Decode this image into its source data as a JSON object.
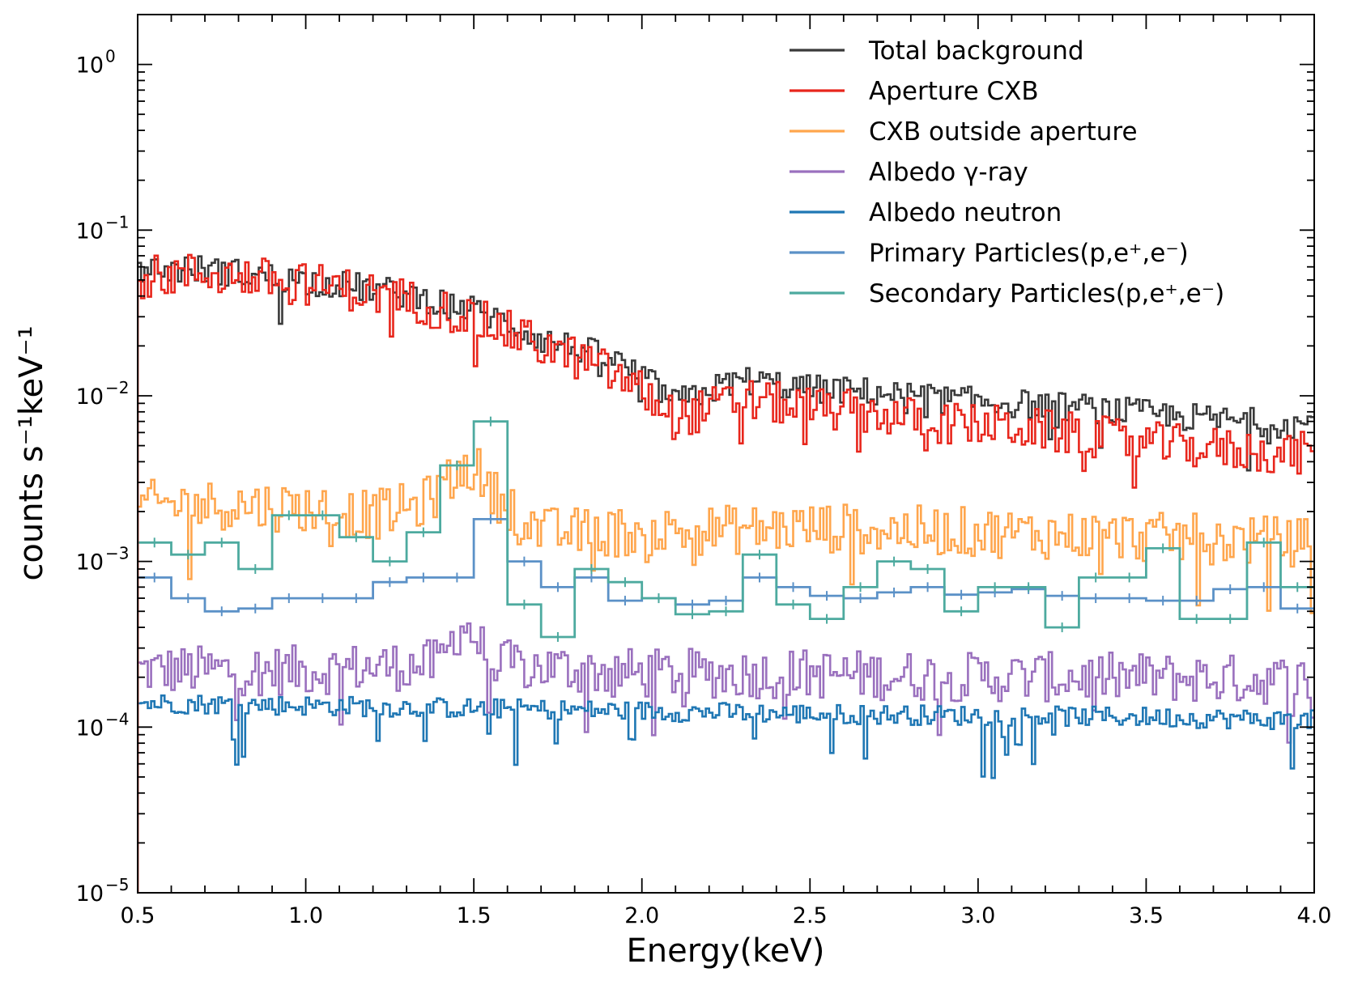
{
  "chart_data": {
    "type": "line",
    "style": "step",
    "xlabel": "Energy(keV)",
    "ylabel": "counts s⁻¹keV⁻¹",
    "xscale": "linear",
    "yscale": "log",
    "xlim": [
      0.5,
      4.0
    ],
    "ylim": [
      1e-05,
      2
    ],
    "xticks": [
      {
        "value": 0.5,
        "label": "0.5"
      },
      {
        "value": 1.0,
        "label": "1.0"
      },
      {
        "value": 1.5,
        "label": "1.5"
      },
      {
        "value": 2.0,
        "label": "2.0"
      },
      {
        "value": 2.5,
        "label": "2.5"
      },
      {
        "value": 3.0,
        "label": "3.0"
      },
      {
        "value": 3.5,
        "label": "3.5"
      },
      {
        "value": 4.0,
        "label": "4.0"
      }
    ],
    "yticks": [
      {
        "value": 1,
        "base": "10",
        "exp": "0"
      },
      {
        "value": 0.1,
        "base": "10",
        "exp": "−1"
      },
      {
        "value": 0.01,
        "base": "10",
        "exp": "−2"
      },
      {
        "value": 0.001,
        "base": "10",
        "exp": "−3"
      },
      {
        "value": 0.0001,
        "base": "10",
        "exp": "−4"
      },
      {
        "value": 1e-05,
        "base": "10",
        "exp": "−5"
      }
    ],
    "legend_position": "top-right",
    "series": [
      {
        "name": "Total background",
        "color": "#3a3a3a",
        "noise": 0.2,
        "binwidth": 0.01,
        "x": [
          0.5,
          0.7,
          0.9,
          1.1,
          1.3,
          1.5,
          1.7,
          1.9,
          2.1,
          2.3,
          2.5,
          2.7,
          2.9,
          3.1,
          3.3,
          3.5,
          3.7,
          3.9,
          4.0
        ],
        "y": [
          0.058,
          0.058,
          0.052,
          0.047,
          0.041,
          0.033,
          0.022,
          0.017,
          0.009,
          0.0125,
          0.011,
          0.0105,
          0.0095,
          0.009,
          0.0085,
          0.0078,
          0.0072,
          0.0068,
          0.0068
        ]
      },
      {
        "name": "Aperture CXB",
        "color": "#e8261c",
        "noise": 0.3,
        "binwidth": 0.01,
        "x": [
          0.5,
          0.7,
          0.9,
          1.1,
          1.3,
          1.5,
          1.7,
          1.9,
          2.1,
          2.3,
          2.5,
          2.7,
          2.9,
          3.1,
          3.3,
          3.5,
          3.7,
          3.9,
          4.0
        ],
        "y": [
          0.052,
          0.055,
          0.05,
          0.045,
          0.038,
          0.029,
          0.02,
          0.014,
          0.0072,
          0.0095,
          0.0085,
          0.0078,
          0.0068,
          0.0065,
          0.0058,
          0.0052,
          0.0048,
          0.0045,
          0.0045
        ]
      },
      {
        "name": "CXB outside aperture",
        "color": "#ffa64d",
        "noise": 0.35,
        "binwidth": 0.01,
        "x": [
          0.5,
          0.8,
          1.0,
          1.2,
          1.35,
          1.45,
          1.5,
          1.55,
          1.7,
          2.0,
          2.5,
          3.0,
          3.5,
          4.0
        ],
        "y": [
          0.0022,
          0.0022,
          0.0021,
          0.0019,
          0.0022,
          0.0033,
          0.0038,
          0.0026,
          0.0015,
          0.0015,
          0.0016,
          0.0015,
          0.0014,
          0.0013
        ]
      },
      {
        "name": "Albedo γ-ray",
        "color": "#9a70be",
        "noise": 0.35,
        "binwidth": 0.01,
        "x": [
          0.5,
          1.0,
          1.4,
          1.47,
          1.55,
          2.0,
          2.5,
          3.0,
          3.5,
          4.0
        ],
        "y": [
          0.00022,
          0.00022,
          0.00024,
          0.00042,
          0.00024,
          0.00021,
          0.00021,
          0.0002,
          0.0002,
          0.00019
        ]
      },
      {
        "name": "Albedo neutron",
        "color": "#1f77b4",
        "noise": 0.14,
        "binwidth": 0.01,
        "x": [
          0.5,
          1.5,
          2.5,
          3.5,
          4.0
        ],
        "y": [
          0.00014,
          0.00013,
          0.00012,
          0.000115,
          0.00011
        ]
      },
      {
        "name": "Primary Particles(p,e⁺,e⁻)",
        "color": "#5b91c7",
        "noise": 0,
        "binwidth": 0.1,
        "x": [
          0.5,
          0.6,
          0.7,
          0.8,
          0.9,
          1.0,
          1.1,
          1.2,
          1.3,
          1.4,
          1.5,
          1.6,
          1.7,
          1.8,
          1.9,
          2.0,
          2.1,
          2.2,
          2.3,
          2.4,
          2.5,
          2.6,
          2.7,
          2.8,
          2.9,
          3.0,
          3.1,
          3.2,
          3.3,
          3.4,
          3.5,
          3.6,
          3.7,
          3.8,
          3.9
        ],
        "y": [
          0.0008,
          0.0006,
          0.0005,
          0.00052,
          0.0006,
          0.0006,
          0.0006,
          0.00075,
          0.0008,
          0.0008,
          0.0018,
          0.001,
          0.0007,
          0.0008,
          0.00058,
          0.0006,
          0.00055,
          0.00058,
          0.0008,
          0.0007,
          0.00062,
          0.0006,
          0.00065,
          0.0007,
          0.00063,
          0.00065,
          0.00068,
          0.00062,
          0.0006,
          0.0006,
          0.00058,
          0.00058,
          0.00068,
          0.0007,
          0.00052
        ]
      },
      {
        "name": "Secondary Particles(p,e⁺,e⁻)",
        "color": "#4daa9f",
        "noise": 0,
        "binwidth": 0.1,
        "x": [
          0.5,
          0.6,
          0.7,
          0.8,
          0.9,
          1.0,
          1.1,
          1.2,
          1.3,
          1.4,
          1.5,
          1.6,
          1.7,
          1.8,
          1.9,
          2.0,
          2.1,
          2.2,
          2.3,
          2.4,
          2.5,
          2.6,
          2.7,
          2.8,
          2.9,
          3.0,
          3.1,
          3.2,
          3.3,
          3.4,
          3.5,
          3.6,
          3.7,
          3.8,
          3.9
        ],
        "y": [
          0.0013,
          0.0011,
          0.0013,
          0.0009,
          0.0019,
          0.0019,
          0.0014,
          0.001,
          0.0015,
          0.0038,
          0.007,
          0.00055,
          0.00035,
          0.0009,
          0.00075,
          0.0006,
          0.00048,
          0.0005,
          0.0011,
          0.00055,
          0.00045,
          0.0007,
          0.001,
          0.0009,
          0.0005,
          0.0007,
          0.0007,
          0.0004,
          0.0008,
          0.0008,
          0.0012,
          0.00045,
          0.00045,
          0.0013,
          0.0007
        ]
      }
    ]
  }
}
